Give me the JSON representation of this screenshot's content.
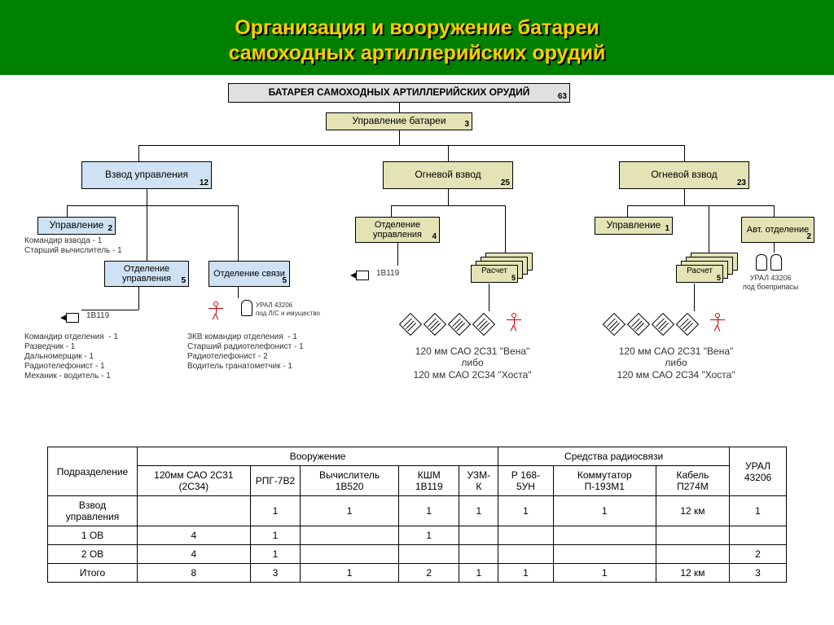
{
  "title_line_1": "Организация и вооружение батареи",
  "title_line_2": "самоходных артиллерийских орудий",
  "colors": {
    "header_bg": "#008000",
    "title": "#ffcc00",
    "box_top": "#e0e0e0",
    "box_khaki": "#e3e3b5",
    "box_blue": "#cfe2f3",
    "line": "#000000",
    "stick": "#c00000",
    "border": "#000000",
    "text": "#333333"
  },
  "boxes": {
    "root": {
      "label": "БАТАРЕЯ САМОХОДНЫХ АРТИЛЛЕРИЙСКИХ ОРУДИЙ",
      "num": "63"
    },
    "mgmt": {
      "label": "Управление батареи",
      "num": "3"
    },
    "vzvod_upr": {
      "label": "Взвод управления",
      "num": "12"
    },
    "ogn1": {
      "label": "Огневой взвод",
      "num": "25"
    },
    "ogn2": {
      "label": "Огневой взвод",
      "num": "23"
    },
    "upr_left": {
      "label": "Управление",
      "num": "2"
    },
    "otd_upr_mid": {
      "label": "Отделение управления",
      "num": "4"
    },
    "upr_right": {
      "label": "Управление",
      "num": "1"
    },
    "avt_otd": {
      "label": "Авт. отделение",
      "num": "2"
    },
    "otd_upr_left": {
      "label": "Отделение управления",
      "num": "5"
    },
    "otd_svyazi": {
      "label": "Отделение связи",
      "num": "5"
    },
    "raschet1": {
      "label": "Расчет",
      "num": "5"
    },
    "raschet2": {
      "label": "Расчет",
      "num": "5"
    }
  },
  "notes": {
    "upr_left_note": "Командир взвода - 1\nСтарший вычислитель - 1",
    "otd_upr_left_note": "Командир отделения  - 1\nРазведчик - 1\nДальномерщик - 1\nРадиотелефонист - 1\nМеханик - водитель - 1",
    "otd_svyazi_note": "ЗКВ командир отделения  - 1\nСтарший радиотелефонист - 1\nРадиотелефонист - 2\nВодитель гранатометчик - 1",
    "veh_1b119_a": "1В119",
    "veh_1b119_b": "1В119",
    "ural_note": "УРАЛ 43206\nпод Л/С и имущество",
    "ural_ammo": "УРАЛ 43206\nпод боеприпасы",
    "sao_line1": "120 мм САО 2С31 \"Вена\"",
    "sao_line2": "либо",
    "sao_line3": "120 мм САО 2С34 \"Хоста\""
  },
  "table": {
    "row_header": "Подразделение",
    "group_1": "Вооружение",
    "group_2": "Средства радиосвязи",
    "col_last": "УРАЛ 43206",
    "cols_g1": [
      "120мм САО 2С31 (2С34)",
      "РПГ-7В2",
      "Вычислитель 1В520",
      "КШМ 1В119",
      "УЗМ-К"
    ],
    "cols_g2": [
      "Р 168-5УН",
      "Коммутатор П-193М1",
      "Кабель П274М"
    ],
    "rows": [
      {
        "name": "Взвод управления",
        "cells": [
          "",
          "1",
          "1",
          "1",
          "1",
          "1",
          "1",
          "12 км",
          "1"
        ]
      },
      {
        "name": "1 ОВ",
        "cells": [
          "4",
          "1",
          "",
          "1",
          "",
          "",
          "",
          "",
          ""
        ]
      },
      {
        "name": "2 ОВ",
        "cells": [
          "4",
          "1",
          "",
          "",
          "",
          "",
          "",
          "",
          "2"
        ]
      },
      {
        "name": "Итого",
        "cells": [
          "8",
          "3",
          "1",
          "2",
          "1",
          "1",
          "1",
          "12 км",
          "3"
        ]
      }
    ]
  }
}
